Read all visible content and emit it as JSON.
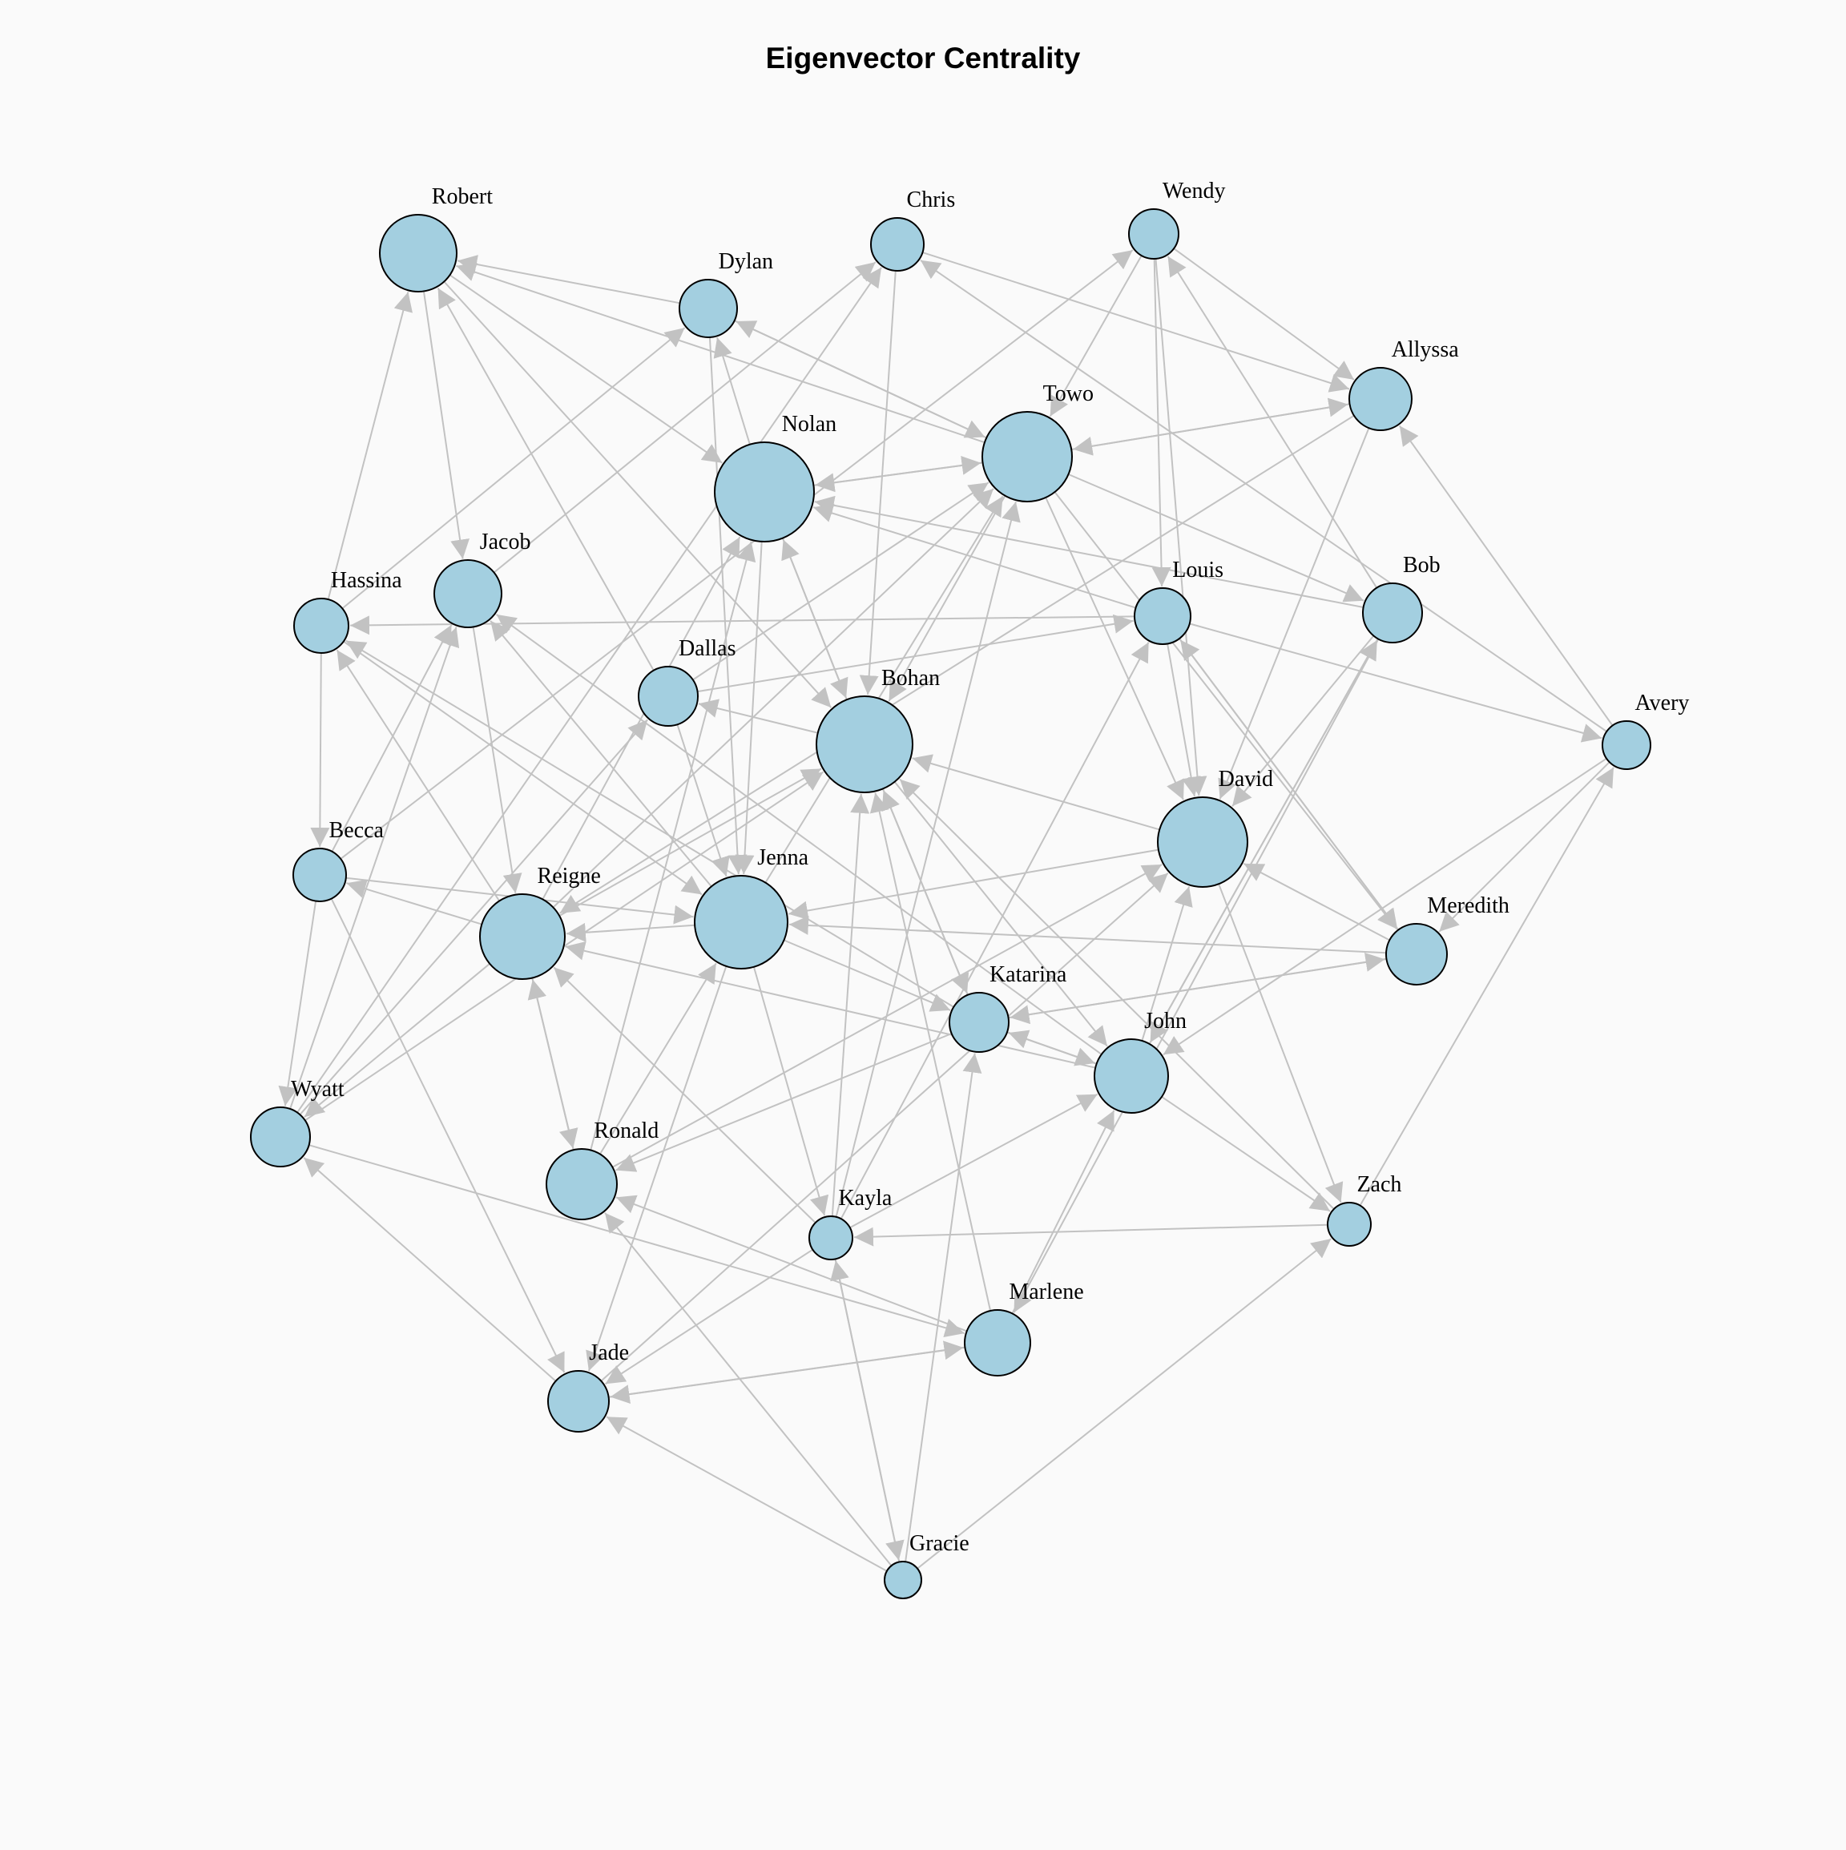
{
  "diagram": {
    "title": "Eigenvector Centrality",
    "colors": {
      "node_fill": "#a3cfe0",
      "node_stroke": "#000000",
      "edge": "#c2c2c2",
      "background": "#fafafa"
    },
    "nodes": [
      {
        "id": "Robert",
        "label": "Robert"
      },
      {
        "id": "Chris",
        "label": "Chris"
      },
      {
        "id": "Wendy",
        "label": "Wendy"
      },
      {
        "id": "Dylan",
        "label": "Dylan"
      },
      {
        "id": "Allyssa",
        "label": "Allyssa"
      },
      {
        "id": "Towo",
        "label": "Towo"
      },
      {
        "id": "Nolan",
        "label": "Nolan"
      },
      {
        "id": "Hassina",
        "label": "Hassina"
      },
      {
        "id": "Jacob",
        "label": "Jacob"
      },
      {
        "id": "Louis",
        "label": "Louis"
      },
      {
        "id": "Bob",
        "label": "Bob"
      },
      {
        "id": "Dallas",
        "label": "Dallas"
      },
      {
        "id": "Bohan",
        "label": "Bohan"
      },
      {
        "id": "Avery",
        "label": "Avery"
      },
      {
        "id": "Becca",
        "label": "Becca"
      },
      {
        "id": "David",
        "label": "David"
      },
      {
        "id": "Reigne",
        "label": "Reigne"
      },
      {
        "id": "Jenna",
        "label": "Jenna"
      },
      {
        "id": "Meredith",
        "label": "Meredith"
      },
      {
        "id": "Katarina",
        "label": "Katarina"
      },
      {
        "id": "John",
        "label": "John"
      },
      {
        "id": "Wyatt",
        "label": "Wyatt"
      },
      {
        "id": "Ronald",
        "label": "Ronald"
      },
      {
        "id": "Zach",
        "label": "Zach"
      },
      {
        "id": "Kayla",
        "label": "Kayla"
      },
      {
        "id": "Marlene",
        "label": "Marlene"
      },
      {
        "id": "Jade",
        "label": "Jade"
      },
      {
        "id": "Gracie",
        "label": "Gracie"
      }
    ],
    "edges": [
      [
        "Dylan",
        "Robert"
      ],
      [
        "Towo",
        "Robert"
      ],
      [
        "Robert",
        "Nolan"
      ],
      [
        "Robert",
        "Bohan"
      ],
      [
        "Robert",
        "Jacob"
      ],
      [
        "Hassina",
        "Robert"
      ],
      [
        "Dallas",
        "Robert"
      ],
      [
        "Chris",
        "Allyssa"
      ],
      [
        "Chris",
        "Bohan"
      ],
      [
        "Avery",
        "Chris"
      ],
      [
        "Jacob",
        "Chris"
      ],
      [
        "Wyatt",
        "Chris"
      ],
      [
        "Wendy",
        "Allyssa"
      ],
      [
        "Wendy",
        "Towo"
      ],
      [
        "Wendy",
        "Louis"
      ],
      [
        "Wendy",
        "David"
      ],
      [
        "Bob",
        "Wendy"
      ],
      [
        "Becca",
        "Wendy"
      ],
      [
        "Dylan",
        "Towo"
      ],
      [
        "Towo",
        "Dylan"
      ],
      [
        "Dylan",
        "Jenna"
      ],
      [
        "Nolan",
        "Dylan"
      ],
      [
        "Hassina",
        "Dylan"
      ],
      [
        "Allyssa",
        "Towo"
      ],
      [
        "Towo",
        "Allyssa"
      ],
      [
        "Allyssa",
        "David"
      ],
      [
        "Avery",
        "Allyssa"
      ],
      [
        "Allyssa",
        "Reigne"
      ],
      [
        "Nolan",
        "Towo"
      ],
      [
        "Towo",
        "Nolan"
      ],
      [
        "Towo",
        "Bob"
      ],
      [
        "Towo",
        "David"
      ],
      [
        "Towo",
        "Bohan"
      ],
      [
        "Towo",
        "Meredith"
      ],
      [
        "Jenna",
        "Towo"
      ],
      [
        "Reigne",
        "Towo"
      ],
      [
        "Dallas",
        "Towo"
      ],
      [
        "Kayla",
        "Towo"
      ],
      [
        "Nolan",
        "Jenna"
      ],
      [
        "Louis",
        "Nolan"
      ],
      [
        "Bob",
        "Nolan"
      ],
      [
        "Bohan",
        "Nolan"
      ],
      [
        "Nolan",
        "Bohan"
      ],
      [
        "Ronald",
        "Nolan"
      ],
      [
        "Reigne",
        "Nolan"
      ],
      [
        "Hassina",
        "Becca"
      ],
      [
        "Louis",
        "Hassina"
      ],
      [
        "Reigne",
        "Hassina"
      ],
      [
        "Hassina",
        "Jenna"
      ],
      [
        "Katarina",
        "Hassina"
      ],
      [
        "Jacob",
        "Reigne"
      ],
      [
        "Jenna",
        "Jacob"
      ],
      [
        "Becca",
        "Jacob"
      ],
      [
        "Wyatt",
        "Jacob"
      ],
      [
        "John",
        "Jacob"
      ],
      [
        "Louis",
        "David"
      ],
      [
        "Louis",
        "Avery"
      ],
      [
        "Dallas",
        "Louis"
      ],
      [
        "Louis",
        "Meredith"
      ],
      [
        "Meredith",
        "Louis"
      ],
      [
        "Kayla",
        "Louis"
      ],
      [
        "Bob",
        "David"
      ],
      [
        "Bob",
        "John"
      ],
      [
        "John",
        "Bob"
      ],
      [
        "Bob",
        "Marlene"
      ],
      [
        "Dallas",
        "Jenna"
      ],
      [
        "Bohan",
        "Dallas"
      ],
      [
        "Wyatt",
        "Dallas"
      ],
      [
        "Bohan",
        "Katarina"
      ],
      [
        "Katarina",
        "Bohan"
      ],
      [
        "Bohan",
        "John"
      ],
      [
        "Zach",
        "Bohan"
      ],
      [
        "David",
        "Bohan"
      ],
      [
        "Kayla",
        "Bohan"
      ],
      [
        "Wyatt",
        "Bohan"
      ],
      [
        "Avery",
        "Meredith"
      ],
      [
        "Avery",
        "John"
      ],
      [
        "Zach",
        "Avery"
      ],
      [
        "Becca",
        "Jenna"
      ],
      [
        "Reigne",
        "Becca"
      ],
      [
        "Becca",
        "Wyatt"
      ],
      [
        "Becca",
        "Jade"
      ],
      [
        "David",
        "Jenna"
      ],
      [
        "Meredith",
        "David"
      ],
      [
        "John",
        "David"
      ],
      [
        "David",
        "Zach"
      ],
      [
        "Ronald",
        "David"
      ],
      [
        "Reigne",
        "Wyatt"
      ],
      [
        "Reigne",
        "Ronald"
      ],
      [
        "Ronald",
        "Reigne"
      ],
      [
        "Jenna",
        "Reigne"
      ],
      [
        "John",
        "Reigne"
      ],
      [
        "Kayla",
        "Reigne"
      ],
      [
        "Reigne",
        "Bohan"
      ],
      [
        "Jenna",
        "Katarina"
      ],
      [
        "Ronald",
        "Jenna"
      ],
      [
        "Jenna",
        "Jade"
      ],
      [
        "Jenna",
        "Kayla"
      ],
      [
        "Meredith",
        "Jenna"
      ],
      [
        "Katarina",
        "Meredith"
      ],
      [
        "Meredith",
        "Katarina"
      ],
      [
        "Katarina",
        "John"
      ],
      [
        "John",
        "Katarina"
      ],
      [
        "Katarina",
        "Ronald"
      ],
      [
        "Gracie",
        "Katarina"
      ],
      [
        "John",
        "Zach"
      ],
      [
        "Kayla",
        "John"
      ],
      [
        "Marlene",
        "John"
      ],
      [
        "Marlene",
        "Bohan"
      ],
      [
        "Marlene",
        "Ronald"
      ],
      [
        "Wyatt",
        "Marlene"
      ],
      [
        "Jade",
        "Wyatt"
      ],
      [
        "Jade",
        "Marlene"
      ],
      [
        "Marlene",
        "Jade"
      ],
      [
        "Gracie",
        "Ronald"
      ],
      [
        "Gracie",
        "Jade"
      ],
      [
        "Gracie",
        "Zach"
      ],
      [
        "Gracie",
        "Kayla"
      ],
      [
        "Kayla",
        "Gracie"
      ],
      [
        "Kayla",
        "Jade"
      ],
      [
        "Zach",
        "Kayla"
      ],
      [
        "Jade",
        "David"
      ]
    ]
  }
}
